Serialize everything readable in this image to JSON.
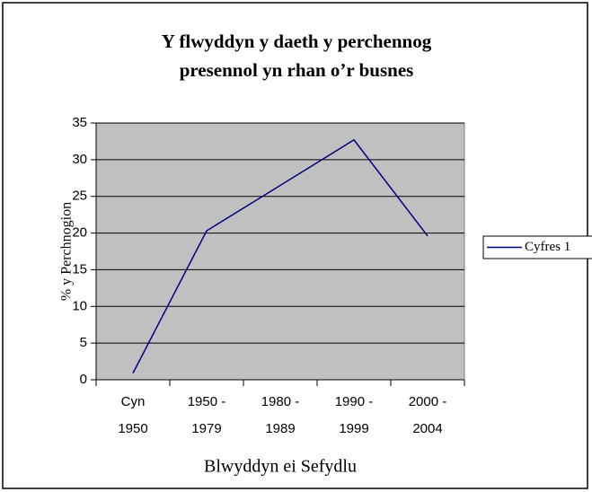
{
  "chart_data": {
    "type": "line",
    "title": [
      "Y flwyddyn y daeth y perchennog",
      "presennol yn rhan o’r busnes"
    ],
    "xlabel": "Blwyddyn ei Sefydlu",
    "ylabel": "% y Perchnogion",
    "categories": [
      "Cyn 1950",
      "1950 - 1979",
      "1980 - 1989",
      "1990 - 1999",
      "2000 - 2004"
    ],
    "series": [
      {
        "name": "Cyfres 1",
        "color": "#000080",
        "values": [
          0.9,
          20.3,
          26.5,
          32.7,
          19.6
        ]
      }
    ],
    "ylim": [
      0,
      35
    ],
    "yticks": [
      0,
      5,
      10,
      15,
      20,
      25,
      30,
      35
    ],
    "grid": true,
    "legend": "right"
  }
}
